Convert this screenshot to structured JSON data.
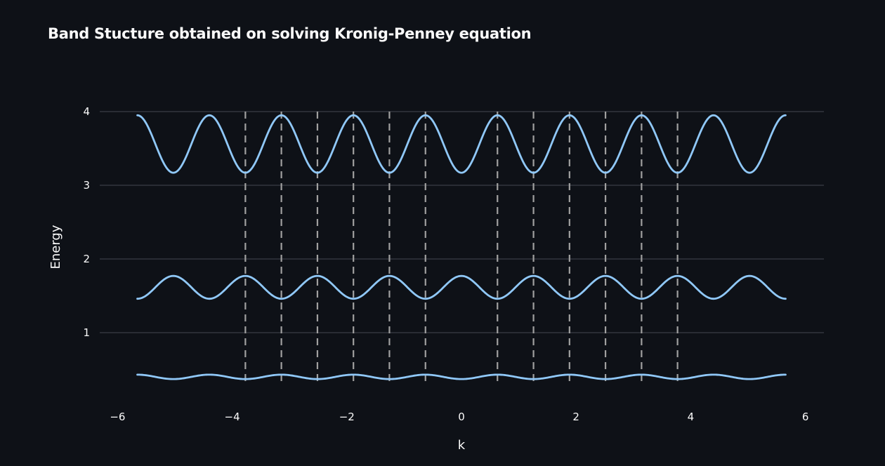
{
  "chart_data": {
    "type": "line",
    "title": "Band Stucture obtained on solving Kronig-Penney equation",
    "xlabel": "k",
    "ylabel": "Energy",
    "xlim": [
      -6,
      6
    ],
    "ylim": [
      0,
      4
    ],
    "x_ticks": [
      -6,
      -4,
      -2,
      0,
      2,
      4,
      6
    ],
    "y_ticks": [
      1,
      2,
      3,
      4
    ],
    "grid": "horizontal",
    "line_color": "#90c8f8",
    "guide_color": "#a0a0a0",
    "k_range": [
      -5.655,
      5.655
    ],
    "period": 1.2566,
    "series": [
      {
        "min": 3.17,
        "max": 3.95,
        "start": "max",
        "x": [
          -5.655,
          -5.027,
          -4.398,
          -3.77,
          -3.142,
          -2.513,
          -1.885,
          -1.257,
          -0.628,
          0,
          0.628,
          1.257,
          1.885,
          2.513,
          3.142,
          3.77,
          4.398,
          5.027,
          5.655
        ],
        "y": [
          3.95,
          3.17,
          3.95,
          3.17,
          3.95,
          3.17,
          3.95,
          3.17,
          3.95,
          3.17,
          3.95,
          3.17,
          3.95,
          3.17,
          3.95,
          3.17,
          3.95,
          3.17,
          3.95
        ]
      },
      {
        "min": 1.46,
        "max": 1.77,
        "start": "min",
        "x": [
          -5.655,
          -5.027,
          -4.398,
          -3.77,
          -3.142,
          -2.513,
          -1.885,
          -1.257,
          -0.628,
          0,
          0.628,
          1.257,
          1.885,
          2.513,
          3.142,
          3.77,
          4.398,
          5.027,
          5.655
        ],
        "y": [
          1.46,
          1.77,
          1.46,
          1.77,
          1.46,
          1.77,
          1.46,
          1.77,
          1.46,
          1.77,
          1.46,
          1.77,
          1.46,
          1.77,
          1.46,
          1.77,
          1.46,
          1.77,
          1.46
        ]
      },
      {
        "min": 0.37,
        "max": 0.43,
        "start": "max",
        "x": [
          -5.655,
          -5.027,
          -4.398,
          -3.77,
          -3.142,
          -2.513,
          -1.885,
          -1.257,
          -0.628,
          0,
          0.628,
          1.257,
          1.885,
          2.513,
          3.142,
          3.77,
          4.398,
          5.027,
          5.655
        ],
        "y": [
          0.43,
          0.37,
          0.43,
          0.37,
          0.43,
          0.37,
          0.43,
          0.37,
          0.43,
          0.37,
          0.43,
          0.37,
          0.43,
          0.37,
          0.43,
          0.37,
          0.43,
          0.37,
          0.43
        ]
      }
    ],
    "vertical_guides": {
      "style": "dashed",
      "x": [
        -3.77,
        -3.142,
        -2.513,
        -1.885,
        -1.257,
        -0.628,
        0.628,
        1.257,
        1.885,
        2.513,
        3.142,
        3.77
      ],
      "y_range": [
        0.32,
        4.0
      ]
    }
  }
}
